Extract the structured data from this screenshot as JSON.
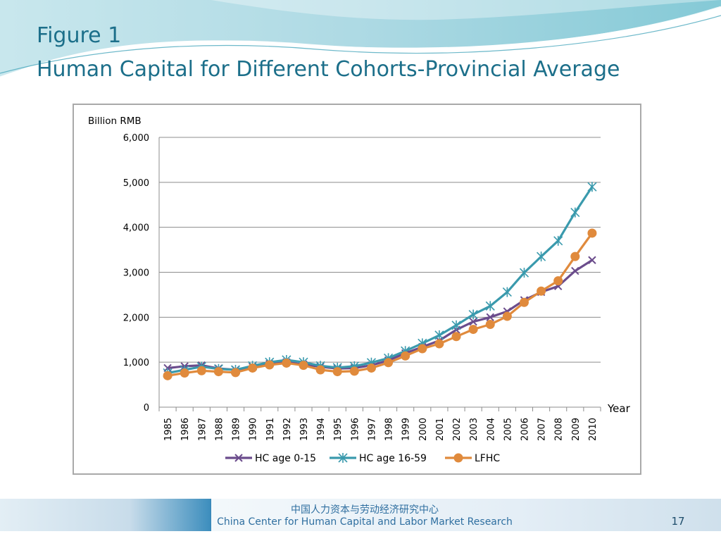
{
  "slide": {
    "title_line1": "Figure 1",
    "title_line2": "Human Capital for Different Cohorts-Provincial Average",
    "footer_cn": "中国人力资本与劳动经济研究中心",
    "footer_en": "China Center for Human Capital and Labor Market Research",
    "page_number": "17"
  },
  "colors": {
    "title": "#1c6f8a",
    "hc_0_15": "#6b4c8c",
    "hc_16_59": "#3a9aad",
    "lfhc": "#e08a3c"
  },
  "chart_data": {
    "type": "line",
    "ylabel": "Billion RMB",
    "xlabel": "Year",
    "ylim": [
      0,
      6000
    ],
    "yticks": [
      0,
      1000,
      2000,
      3000,
      4000,
      5000,
      6000
    ],
    "ytick_labels": [
      "0",
      "1,000",
      "2,000",
      "3,000",
      "4,000",
      "5,000",
      "6,000"
    ],
    "grid": true,
    "legend_position": "bottom",
    "categories": [
      "1985",
      "1986",
      "1987",
      "1988",
      "1989",
      "1990",
      "1991",
      "1992",
      "1993",
      "1994",
      "1995",
      "1996",
      "1997",
      "1998",
      "1999",
      "2000",
      "2001",
      "2002",
      "2003",
      "2004",
      "2005",
      "2006",
      "2007",
      "2008",
      "2009",
      "2010"
    ],
    "series": [
      {
        "name": "HC age 0-15",
        "marker": "x",
        "color": "#6b4c8c",
        "values": [
          870,
          910,
          930,
          860,
          830,
          900,
          960,
          1000,
          950,
          900,
          860,
          870,
          930,
          1040,
          1200,
          1340,
          1480,
          1720,
          1900,
          2000,
          2130,
          2380,
          2560,
          2690,
          3030,
          3270
        ]
      },
      {
        "name": "HC age 16-59",
        "marker": "asterisk",
        "color": "#3a9aad",
        "values": [
          760,
          830,
          900,
          850,
          830,
          920,
          1000,
          1050,
          1000,
          920,
          880,
          910,
          990,
          1090,
          1250,
          1420,
          1600,
          1820,
          2060,
          2250,
          2560,
          2990,
          3350,
          3700,
          4330,
          4900
        ]
      },
      {
        "name": "LFHC",
        "marker": "circle",
        "color": "#e08a3c",
        "values": [
          700,
          760,
          810,
          790,
          770,
          870,
          940,
          980,
          930,
          830,
          790,
          800,
          870,
          990,
          1140,
          1300,
          1410,
          1570,
          1730,
          1840,
          2020,
          2330,
          2580,
          2810,
          3350,
          3870
        ]
      }
    ]
  }
}
